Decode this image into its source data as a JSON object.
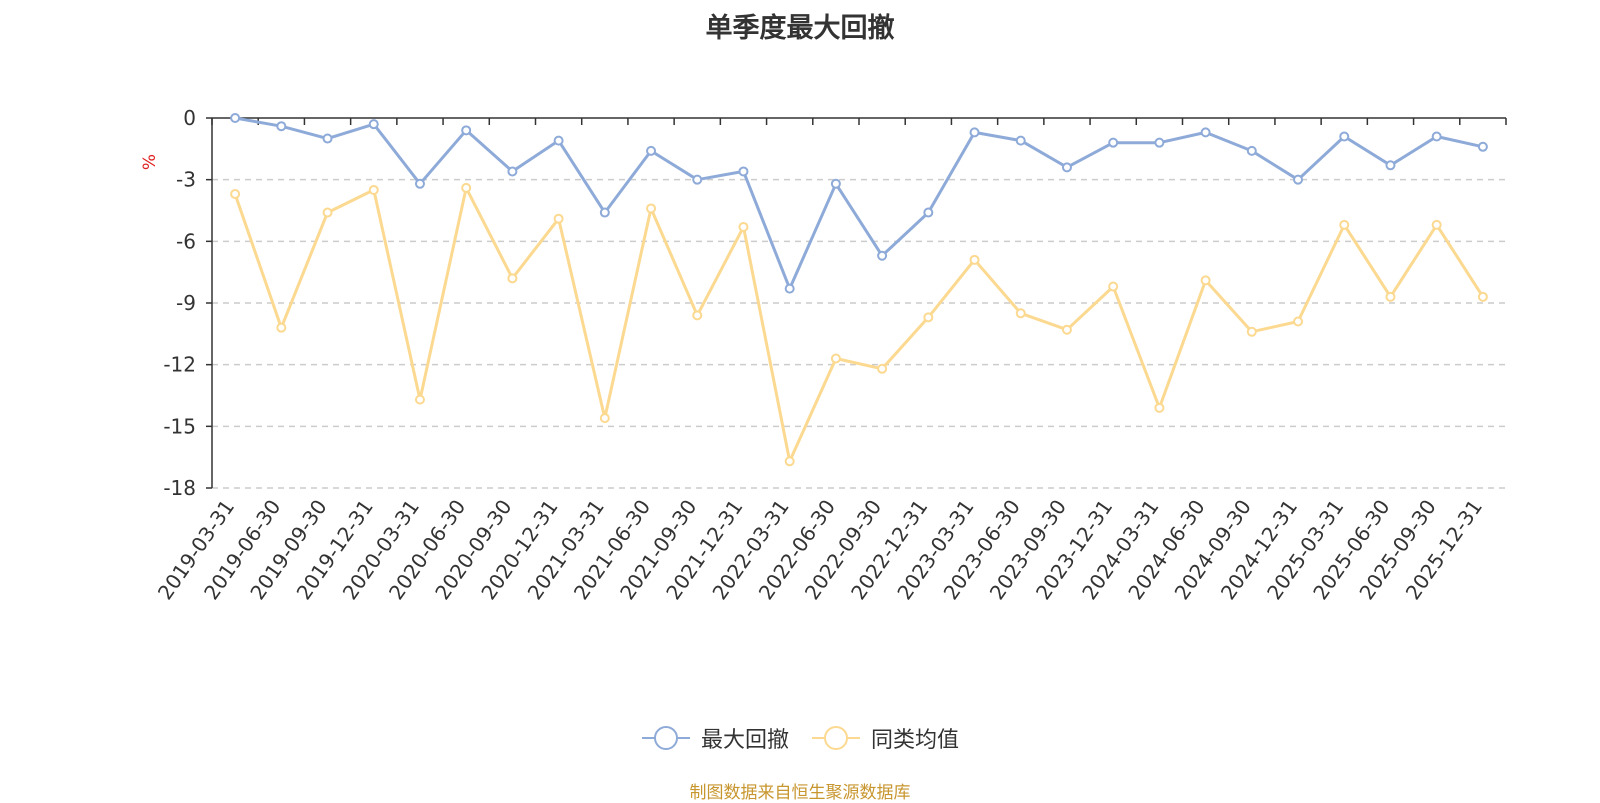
{
  "chart_data": {
    "type": "line",
    "title": "单季度最大回撤",
    "ylabel": "%",
    "xlabel": "",
    "ylim": [
      -18,
      0
    ],
    "yticks": [
      0,
      -3,
      -6,
      -9,
      -12,
      -15,
      -18
    ],
    "grid": true,
    "legend_position": "bottom-center",
    "categories": [
      "2019-03-31",
      "2019-06-30",
      "2019-09-30",
      "2019-12-31",
      "2020-03-31",
      "2020-06-30",
      "2020-09-30",
      "2020-12-31",
      "2021-03-31",
      "2021-06-30",
      "2021-09-30",
      "2021-12-31",
      "2022-03-31",
      "2022-06-30",
      "2022-09-30",
      "2022-12-31",
      "2023-03-31",
      "2023-06-30",
      "2023-09-30",
      "2023-12-31",
      "2024-03-31",
      "2024-06-30",
      "2024-09-30",
      "2024-12-31",
      "2025-03-31",
      "2025-06-30",
      "2025-09-30",
      "2025-12-31"
    ],
    "series": [
      {
        "name": "最大回撤",
        "color": "#8eaad8",
        "values": [
          0.0,
          -0.4,
          -1.0,
          -0.3,
          -3.2,
          -0.6,
          -2.6,
          -1.1,
          -4.6,
          -1.6,
          -3.0,
          -2.6,
          -8.3,
          -3.2,
          -6.7,
          -4.6,
          -0.7,
          -1.1,
          -2.4,
          -1.2,
          -1.2,
          -0.7,
          -1.6,
          -3.0,
          -0.9,
          -2.3,
          -0.9,
          -1.4
        ]
      },
      {
        "name": "同类均值",
        "color": "#fcd990",
        "values": [
          -3.7,
          -10.2,
          -4.6,
          -3.5,
          -13.7,
          -3.4,
          -7.8,
          -4.9,
          -14.6,
          -4.4,
          -9.6,
          -5.3,
          -16.7,
          -11.7,
          -12.2,
          -9.7,
          -6.9,
          -9.5,
          -10.3,
          -8.2,
          -14.1,
          -7.9,
          -10.4,
          -9.9,
          -5.2,
          -8.7,
          -5.2,
          -8.7
        ]
      }
    ],
    "source_note": "制图数据来自恒生聚源数据库",
    "source_color": "#c8962e",
    "ylabel_color": "#e02020"
  }
}
